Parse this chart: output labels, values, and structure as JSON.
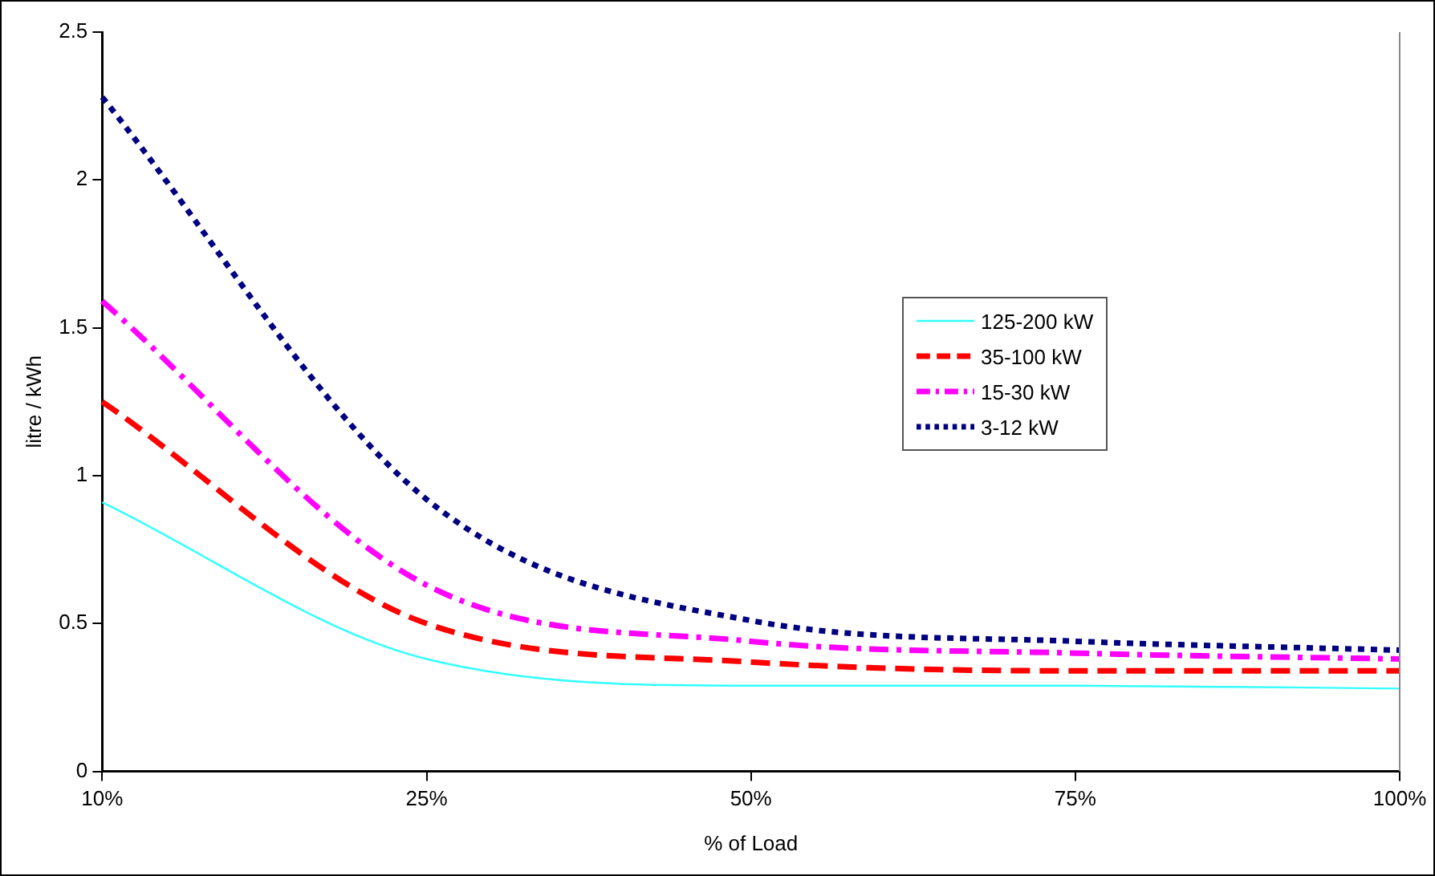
{
  "chart_data": {
    "type": "line",
    "xlabel": "% of Load",
    "ylabel": "litre / kWh",
    "categories": [
      "10%",
      "25%",
      "50%",
      "75%",
      "100%"
    ],
    "ylim": [
      0,
      2.5
    ],
    "yticks": [
      0,
      0.5,
      1,
      1.5,
      2,
      2.5
    ],
    "grid": false,
    "legend": "right",
    "marker": "none",
    "series": [
      {
        "name": "125-200 kW",
        "color": "#33ffff",
        "line_style": "solid",
        "values": [
          0.91,
          0.38,
          0.29,
          0.29,
          0.28
        ]
      },
      {
        "name": "35-100 kW",
        "color": "#ff0000",
        "line_style": "dashed",
        "values": [
          1.25,
          0.5,
          0.37,
          0.34,
          0.34
        ]
      },
      {
        "name": "15-30 kW",
        "color": "#ff00ff",
        "line_style": "dashdot",
        "values": [
          1.59,
          0.63,
          0.44,
          0.4,
          0.38
        ]
      },
      {
        "name": "3-12 kW",
        "color": "#000080",
        "line_style": "dotted",
        "values": [
          2.28,
          0.92,
          0.51,
          0.44,
          0.41
        ]
      }
    ]
  }
}
